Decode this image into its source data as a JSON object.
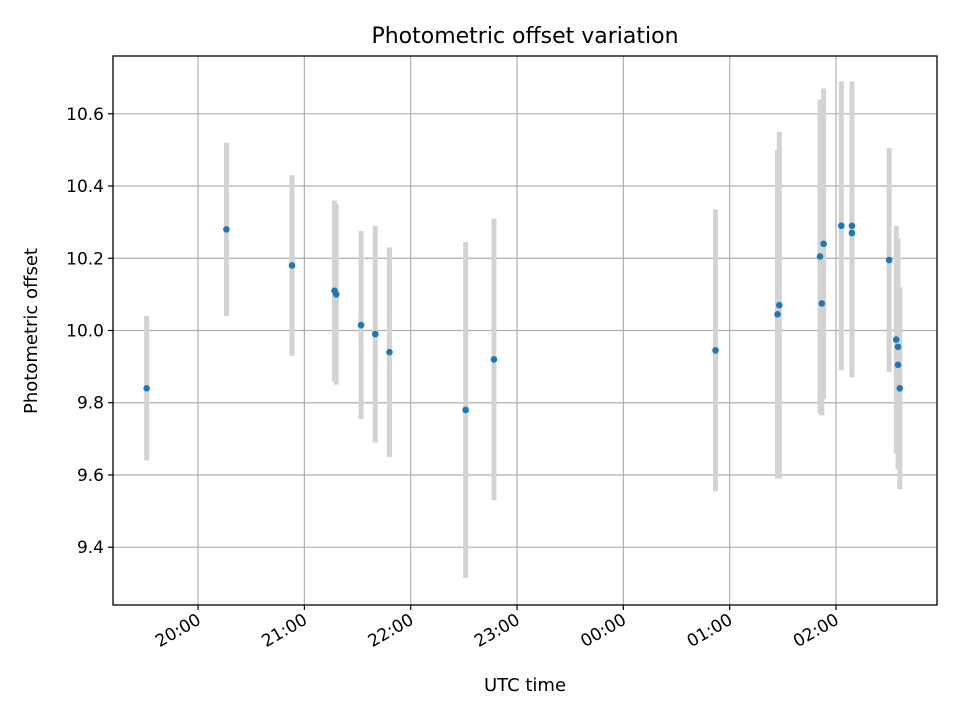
{
  "chart_data": {
    "type": "scatter",
    "title": "Photometric offset variation",
    "xlabel": "UTC time",
    "ylabel": "Photometric offset",
    "x_ticks": [
      "20:00",
      "21:00",
      "22:00",
      "23:00",
      "00:00",
      "01:00",
      "02:00"
    ],
    "x_tick_hours": [
      20,
      21,
      22,
      23,
      24,
      25,
      26
    ],
    "y_ticks": [
      "9.4",
      "9.6",
      "9.8",
      "10.0",
      "10.2",
      "10.4",
      "10.6"
    ],
    "xlim": [
      "19:12",
      "02:57"
    ],
    "ylim": [
      9.24,
      10.76
    ],
    "grid": true,
    "point_color": "#1f77b4",
    "errorbar_color": "#d3d3d3",
    "points": [
      {
        "x": "19:31",
        "y": 9.84,
        "err": 0.2
      },
      {
        "x": "20:16",
        "y": 10.28,
        "err": 0.24
      },
      {
        "x": "20:53",
        "y": 10.18,
        "err": 0.25
      },
      {
        "x": "21:17",
        "y": 10.11,
        "err": 0.25
      },
      {
        "x": "21:18",
        "y": 10.1,
        "err": 0.25
      },
      {
        "x": "21:32",
        "y": 10.015,
        "err": 0.26
      },
      {
        "x": "21:40",
        "y": 9.99,
        "err": 0.3
      },
      {
        "x": "21:48",
        "y": 9.94,
        "err": 0.29
      },
      {
        "x": "22:31",
        "y": 9.78,
        "err": 0.465
      },
      {
        "x": "22:47",
        "y": 9.92,
        "err": 0.39
      },
      {
        "x": "00:52",
        "y": 9.945,
        "err": 0.39
      },
      {
        "x": "01:27",
        "y": 10.045,
        "err": 0.455
      },
      {
        "x": "01:28",
        "y": 10.07,
        "err": 0.48
      },
      {
        "x": "01:51",
        "y": 10.205,
        "err": 0.435
      },
      {
        "x": "01:52",
        "y": 10.075,
        "err": 0.31
      },
      {
        "x": "01:53",
        "y": 10.24,
        "err": 0.43
      },
      {
        "x": "02:03",
        "y": 10.29,
        "err": 0.4
      },
      {
        "x": "02:09",
        "y": 10.29,
        "err": 0.4
      },
      {
        "x": "02:09",
        "y": 10.27,
        "err": 0.4
      },
      {
        "x": "02:30",
        "y": 10.195,
        "err": 0.31
      },
      {
        "x": "02:34",
        "y": 9.975,
        "err": 0.315
      },
      {
        "x": "02:35",
        "y": 9.955,
        "err": 0.3
      },
      {
        "x": "02:35",
        "y": 9.905,
        "err": 0.29
      },
      {
        "x": "02:36",
        "y": 9.84,
        "err": 0.28
      }
    ]
  }
}
